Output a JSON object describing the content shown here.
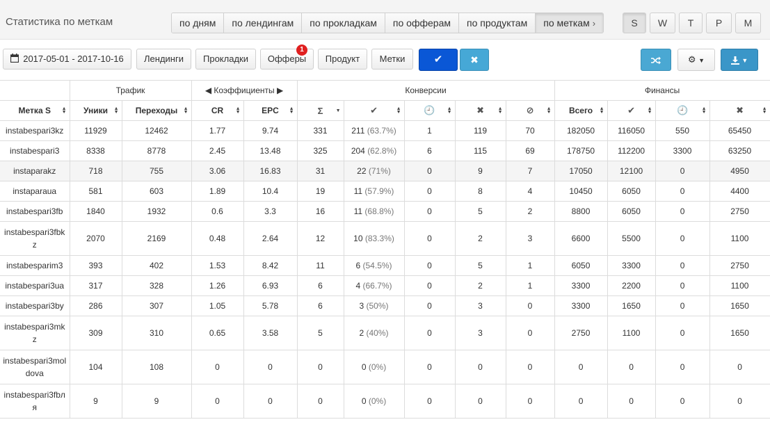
{
  "header": {
    "title": "Статистика по меткам",
    "tabs": [
      {
        "label": "по дням",
        "active": false
      },
      {
        "label": "по лендингам",
        "active": false
      },
      {
        "label": "по прокладкам",
        "active": false
      },
      {
        "label": "по офферам",
        "active": false
      },
      {
        "label": "по продуктам",
        "active": false
      },
      {
        "label": "по меткам",
        "active": true
      }
    ],
    "periods": [
      {
        "label": "S",
        "active": true
      },
      {
        "label": "W",
        "active": false
      },
      {
        "label": "T",
        "active": false
      },
      {
        "label": "P",
        "active": false
      },
      {
        "label": "M",
        "active": false
      }
    ]
  },
  "toolbar": {
    "date_range": "2017-05-01 - 2017-10-16",
    "filters": [
      "Лендинги",
      "Прокладки",
      "Офферы",
      "Продукт",
      "Метки"
    ],
    "offers_badge": "1",
    "accent": "#0a57d6",
    "info_color": "#46a8d6"
  },
  "table": {
    "groups": [
      "Трафик",
      "Коэффициенты",
      "Конверсии",
      "Финансы"
    ],
    "columns": [
      "Метка S",
      "Уники",
      "Переходы",
      "CR",
      "EPC",
      "Σ",
      "✔",
      "🕘",
      "✖",
      "⊘",
      "Всего",
      "✔",
      "🕘",
      "✖"
    ],
    "rows": [
      {
        "tag": [
          "instabespari3kz"
        ],
        "uniq": "11929",
        "clicks": "12462",
        "cr": "1.77",
        "epc": "9.74",
        "sum": "331",
        "appr": "211",
        "appr_pct": "(63.7%)",
        "hold": "1",
        "rej": "119",
        "trash": "70",
        "fin_total": "182050",
        "fin_appr": "116050",
        "fin_hold": "550",
        "fin_rej": "65450"
      },
      {
        "tag": [
          "instabespari3"
        ],
        "uniq": "8338",
        "clicks": "8778",
        "cr": "2.45",
        "epc": "13.48",
        "sum": "325",
        "appr": "204",
        "appr_pct": "(62.8%)",
        "hold": "6",
        "rej": "115",
        "trash": "69",
        "fin_total": "178750",
        "fin_appr": "112200",
        "fin_hold": "3300",
        "fin_rej": "63250"
      },
      {
        "tag": [
          "instaparakz"
        ],
        "uniq": "718",
        "clicks": "755",
        "cr": "3.06",
        "epc": "16.83",
        "sum": "31",
        "appr": "22",
        "appr_pct": "(71%)",
        "hold": "0",
        "rej": "9",
        "trash": "7",
        "fin_total": "17050",
        "fin_appr": "12100",
        "fin_hold": "0",
        "fin_rej": "4950"
      },
      {
        "tag": [
          "instaparaua"
        ],
        "uniq": "581",
        "clicks": "603",
        "cr": "1.89",
        "epc": "10.4",
        "sum": "19",
        "appr": "11",
        "appr_pct": "(57.9%)",
        "hold": "0",
        "rej": "8",
        "trash": "4",
        "fin_total": "10450",
        "fin_appr": "6050",
        "fin_hold": "0",
        "fin_rej": "4400"
      },
      {
        "tag": [
          "instabespari3fb"
        ],
        "uniq": "1840",
        "clicks": "1932",
        "cr": "0.6",
        "epc": "3.3",
        "sum": "16",
        "appr": "11",
        "appr_pct": "(68.8%)",
        "hold": "0",
        "rej": "5",
        "trash": "2",
        "fin_total": "8800",
        "fin_appr": "6050",
        "fin_hold": "0",
        "fin_rej": "2750"
      },
      {
        "tag": [
          "instabespari3fbk",
          "z"
        ],
        "uniq": "2070",
        "clicks": "2169",
        "cr": "0.48",
        "epc": "2.64",
        "sum": "12",
        "appr": "10",
        "appr_pct": "(83.3%)",
        "hold": "0",
        "rej": "2",
        "trash": "3",
        "fin_total": "6600",
        "fin_appr": "5500",
        "fin_hold": "0",
        "fin_rej": "1100"
      },
      {
        "tag": [
          "instabesparim3"
        ],
        "uniq": "393",
        "clicks": "402",
        "cr": "1.53",
        "epc": "8.42",
        "sum": "11",
        "appr": "6",
        "appr_pct": "(54.5%)",
        "hold": "0",
        "rej": "5",
        "trash": "1",
        "fin_total": "6050",
        "fin_appr": "3300",
        "fin_hold": "0",
        "fin_rej": "2750"
      },
      {
        "tag": [
          "instabespari3ua"
        ],
        "uniq": "317",
        "clicks": "328",
        "cr": "1.26",
        "epc": "6.93",
        "sum": "6",
        "appr": "4",
        "appr_pct": "(66.7%)",
        "hold": "0",
        "rej": "2",
        "trash": "1",
        "fin_total": "3300",
        "fin_appr": "2200",
        "fin_hold": "0",
        "fin_rej": "1100"
      },
      {
        "tag": [
          "instabespari3by"
        ],
        "uniq": "286",
        "clicks": "307",
        "cr": "1.05",
        "epc": "5.78",
        "sum": "6",
        "appr": "3",
        "appr_pct": "(50%)",
        "hold": "0",
        "rej": "3",
        "trash": "0",
        "fin_total": "3300",
        "fin_appr": "1650",
        "fin_hold": "0",
        "fin_rej": "1650"
      },
      {
        "tag": [
          "instabespari3mk",
          "z"
        ],
        "uniq": "309",
        "clicks": "310",
        "cr": "0.65",
        "epc": "3.58",
        "sum": "5",
        "appr": "2",
        "appr_pct": "(40%)",
        "hold": "0",
        "rej": "3",
        "trash": "0",
        "fin_total": "2750",
        "fin_appr": "1100",
        "fin_hold": "0",
        "fin_rej": "1650"
      },
      {
        "tag": [
          "instabespari3mol",
          "dova"
        ],
        "uniq": "104",
        "clicks": "108",
        "cr": "0",
        "epc": "0",
        "sum": "0",
        "appr": "0",
        "appr_pct": "(0%)",
        "hold": "0",
        "rej": "0",
        "trash": "0",
        "fin_total": "0",
        "fin_appr": "0",
        "fin_hold": "0",
        "fin_rej": "0"
      },
      {
        "tag": [
          "instabespari3fbл",
          "я"
        ],
        "uniq": "9",
        "clicks": "9",
        "cr": "0",
        "epc": "0",
        "sum": "0",
        "appr": "0",
        "appr_pct": "(0%)",
        "hold": "0",
        "rej": "0",
        "trash": "0",
        "fin_total": "0",
        "fin_appr": "0",
        "fin_hold": "0",
        "fin_rej": "0"
      }
    ]
  }
}
